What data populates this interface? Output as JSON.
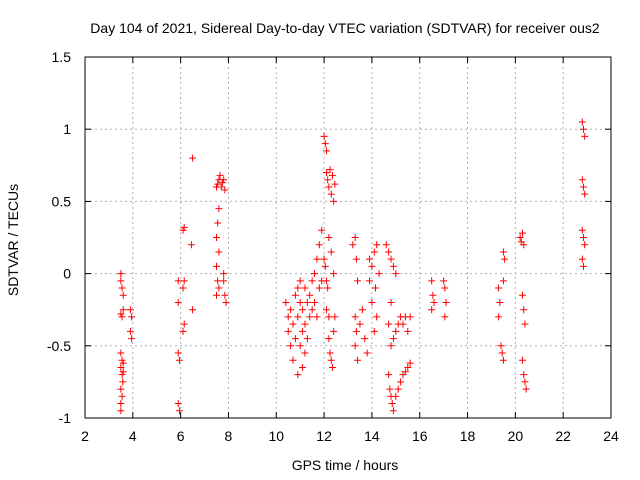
{
  "chart_data": {
    "type": "scatter",
    "title": "Day 104 of 2021, Sidereal Day-to-day VTEC variation (SDTVAR) for receiver ous2",
    "xlabel": "GPS time / hours",
    "ylabel": "SDTVAR / TECUs",
    "xlim": [
      2,
      24
    ],
    "ylim": [
      -1,
      1.5
    ],
    "xticks": [
      2,
      4,
      6,
      8,
      10,
      12,
      14,
      16,
      18,
      20,
      22,
      24
    ],
    "yticks": [
      -1,
      -0.5,
      0,
      0.5,
      1,
      1.5
    ],
    "ytick_labels": [
      "-1",
      "-0.5",
      "0",
      "0.5",
      "1",
      "1.5"
    ],
    "grid": true,
    "marker": "plus",
    "marker_color": "#ff0000",
    "series": [
      {
        "name": "SDTVAR",
        "points": [
          [
            3.5,
            0.0
          ],
          [
            3.5,
            -0.05
          ],
          [
            3.55,
            -0.1
          ],
          [
            3.5,
            -0.28
          ],
          [
            3.55,
            -0.3
          ],
          [
            3.6,
            -0.15
          ],
          [
            3.6,
            -0.25
          ],
          [
            3.5,
            -0.55
          ],
          [
            3.55,
            -0.6
          ],
          [
            3.5,
            -0.65
          ],
          [
            3.55,
            -0.7
          ],
          [
            3.6,
            -0.62
          ],
          [
            3.58,
            -0.75
          ],
          [
            3.5,
            -0.8
          ],
          [
            3.55,
            -0.85
          ],
          [
            3.5,
            -0.9
          ],
          [
            3.5,
            -0.95
          ],
          [
            3.6,
            -0.68
          ],
          [
            3.9,
            -0.25
          ],
          [
            3.95,
            -0.3
          ],
          [
            3.9,
            -0.4
          ],
          [
            3.95,
            -0.45
          ],
          [
            5.9,
            -0.05
          ],
          [
            5.9,
            -0.2
          ],
          [
            5.9,
            -0.55
          ],
          [
            5.95,
            -0.6
          ],
          [
            5.9,
            -0.9
          ],
          [
            5.95,
            -0.95
          ],
          [
            6.1,
            0.3
          ],
          [
            6.15,
            0.32
          ],
          [
            6.15,
            -0.05
          ],
          [
            6.1,
            -0.1
          ],
          [
            6.15,
            -0.35
          ],
          [
            6.1,
            -0.4
          ],
          [
            6.5,
            0.8
          ],
          [
            6.45,
            0.2
          ],
          [
            6.5,
            -0.25
          ],
          [
            7.5,
            0.6
          ],
          [
            7.55,
            0.62
          ],
          [
            7.6,
            0.65
          ],
          [
            7.65,
            0.68
          ],
          [
            7.7,
            0.6
          ],
          [
            7.75,
            0.63
          ],
          [
            7.8,
            0.65
          ],
          [
            7.85,
            0.58
          ],
          [
            7.6,
            0.45
          ],
          [
            7.55,
            0.35
          ],
          [
            7.5,
            0.25
          ],
          [
            7.6,
            0.15
          ],
          [
            7.5,
            0.05
          ],
          [
            7.55,
            -0.05
          ],
          [
            7.6,
            -0.1
          ],
          [
            7.5,
            -0.15
          ],
          [
            7.8,
            -0.05
          ],
          [
            7.85,
            -0.15
          ],
          [
            7.9,
            -0.2
          ],
          [
            7.8,
            0.0
          ],
          [
            10.4,
            -0.2
          ],
          [
            10.5,
            -0.3
          ],
          [
            10.5,
            -0.4
          ],
          [
            10.6,
            -0.25
          ],
          [
            10.6,
            -0.5
          ],
          [
            10.7,
            -0.35
          ],
          [
            10.7,
            -0.6
          ],
          [
            10.8,
            -0.15
          ],
          [
            10.8,
            -0.45
          ],
          [
            10.9,
            -0.1
          ],
          [
            10.9,
            -0.3
          ],
          [
            11.0,
            -0.2
          ],
          [
            11.0,
            -0.05
          ],
          [
            11.1,
            -0.25
          ],
          [
            11.1,
            -0.4
          ],
          [
            11.2,
            -0.1
          ],
          [
            11.2,
            -0.35
          ],
          [
            11.3,
            -0.2
          ],
          [
            11.3,
            -0.45
          ],
          [
            11.4,
            -0.15
          ],
          [
            11.4,
            -0.3
          ],
          [
            11.5,
            -0.05
          ],
          [
            11.5,
            -0.25
          ],
          [
            11.6,
            0.0
          ],
          [
            11.6,
            -0.2
          ],
          [
            11.7,
            0.1
          ],
          [
            11.7,
            -0.3
          ],
          [
            11.8,
            0.2
          ],
          [
            11.8,
            -0.1
          ],
          [
            11.9,
            0.3
          ],
          [
            11.9,
            -0.05
          ],
          [
            11.2,
            -0.55
          ],
          [
            11.1,
            -0.65
          ],
          [
            11.0,
            -0.5
          ],
          [
            10.9,
            -0.7
          ],
          [
            12.0,
            0.95
          ],
          [
            12.05,
            0.9
          ],
          [
            12.1,
            0.85
          ],
          [
            12.1,
            0.7
          ],
          [
            12.15,
            0.65
          ],
          [
            12.2,
            0.6
          ],
          [
            12.25,
            0.72
          ],
          [
            12.3,
            0.55
          ],
          [
            12.35,
            0.68
          ],
          [
            12.4,
            0.5
          ],
          [
            12.45,
            0.62
          ],
          [
            12.0,
            0.1
          ],
          [
            12.05,
            0.05
          ],
          [
            12.1,
            -0.05
          ],
          [
            12.15,
            -0.1
          ],
          [
            12.1,
            -0.25
          ],
          [
            12.2,
            -0.3
          ],
          [
            12.2,
            -0.45
          ],
          [
            12.25,
            -0.55
          ],
          [
            12.3,
            -0.6
          ],
          [
            12.35,
            -0.65
          ],
          [
            12.4,
            -0.4
          ],
          [
            12.45,
            -0.3
          ],
          [
            12.2,
            0.25
          ],
          [
            12.3,
            0.15
          ],
          [
            12.4,
            0.0
          ],
          [
            13.2,
            0.2
          ],
          [
            13.3,
            0.25
          ],
          [
            13.35,
            0.1
          ],
          [
            13.4,
            -0.05
          ],
          [
            13.3,
            -0.3
          ],
          [
            13.35,
            -0.4
          ],
          [
            13.3,
            -0.5
          ],
          [
            13.4,
            -0.6
          ],
          [
            13.5,
            -0.35
          ],
          [
            13.6,
            -0.25
          ],
          [
            13.7,
            -0.45
          ],
          [
            13.8,
            -0.55
          ],
          [
            13.9,
            0.1
          ],
          [
            14.0,
            0.05
          ],
          [
            14.1,
            0.15
          ],
          [
            14.15,
            -0.1
          ],
          [
            14.2,
            -0.3
          ],
          [
            14.1,
            -0.4
          ],
          [
            14.0,
            -0.2
          ],
          [
            13.9,
            -0.05
          ],
          [
            14.2,
            0.2
          ],
          [
            14.3,
            0.0
          ],
          [
            14.6,
            0.2
          ],
          [
            14.7,
            0.15
          ],
          [
            14.8,
            0.1
          ],
          [
            14.9,
            0.05
          ],
          [
            15.0,
            0.0
          ],
          [
            14.8,
            -0.2
          ],
          [
            14.7,
            -0.35
          ],
          [
            14.8,
            -0.5
          ],
          [
            14.9,
            -0.45
          ],
          [
            15.0,
            -0.4
          ],
          [
            15.1,
            -0.35
          ],
          [
            15.2,
            -0.3
          ],
          [
            15.3,
            -0.35
          ],
          [
            15.4,
            -0.3
          ],
          [
            15.5,
            -0.4
          ],
          [
            15.6,
            -0.3
          ],
          [
            14.7,
            -0.7
          ],
          [
            14.75,
            -0.8
          ],
          [
            14.8,
            -0.85
          ],
          [
            14.85,
            -0.9
          ],
          [
            14.9,
            -0.95
          ],
          [
            15.0,
            -0.85
          ],
          [
            15.1,
            -0.8
          ],
          [
            15.2,
            -0.75
          ],
          [
            15.3,
            -0.7
          ],
          [
            15.4,
            -0.68
          ],
          [
            15.5,
            -0.65
          ],
          [
            15.6,
            -0.62
          ],
          [
            16.5,
            -0.05
          ],
          [
            16.55,
            -0.15
          ],
          [
            16.6,
            -0.2
          ],
          [
            16.5,
            -0.25
          ],
          [
            17.0,
            -0.05
          ],
          [
            17.05,
            -0.1
          ],
          [
            17.1,
            -0.2
          ],
          [
            17.05,
            -0.3
          ],
          [
            19.3,
            -0.1
          ],
          [
            19.35,
            -0.2
          ],
          [
            19.3,
            -0.3
          ],
          [
            19.4,
            -0.5
          ],
          [
            19.45,
            -0.55
          ],
          [
            19.5,
            -0.6
          ],
          [
            19.5,
            0.15
          ],
          [
            19.55,
            0.1
          ],
          [
            19.5,
            -0.05
          ],
          [
            20.2,
            0.25
          ],
          [
            20.25,
            0.22
          ],
          [
            20.3,
            0.28
          ],
          [
            20.35,
            0.2
          ],
          [
            20.3,
            -0.15
          ],
          [
            20.35,
            -0.25
          ],
          [
            20.4,
            -0.35
          ],
          [
            20.3,
            -0.6
          ],
          [
            20.35,
            -0.7
          ],
          [
            20.4,
            -0.75
          ],
          [
            20.45,
            -0.8
          ],
          [
            22.8,
            1.05
          ],
          [
            22.85,
            1.0
          ],
          [
            22.9,
            0.95
          ],
          [
            22.8,
            0.65
          ],
          [
            22.85,
            0.6
          ],
          [
            22.9,
            0.55
          ],
          [
            22.8,
            0.3
          ],
          [
            22.85,
            0.25
          ],
          [
            22.9,
            0.2
          ],
          [
            22.8,
            0.1
          ],
          [
            22.85,
            0.05
          ]
        ]
      }
    ]
  }
}
